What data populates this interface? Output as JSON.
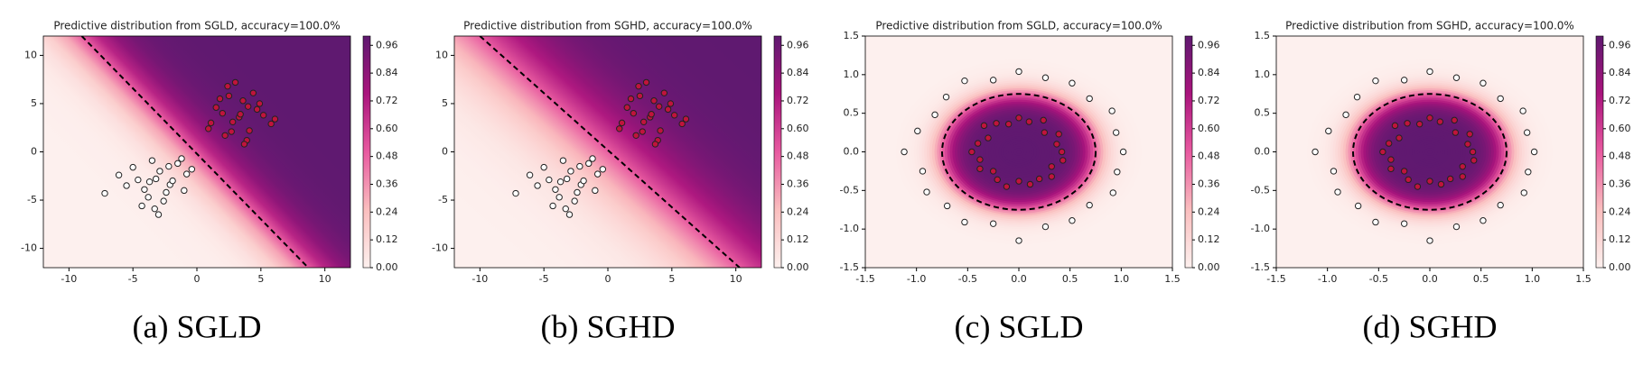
{
  "chart_data": [
    {
      "type": "scatter",
      "title": "Predictive distribution from SGLD, accuracy=100.0%",
      "caption": "(a) SGLD",
      "xlim": [
        -12,
        12
      ],
      "ylim": [
        -12,
        12
      ],
      "xticks": [
        -10,
        -5,
        0,
        5,
        10
      ],
      "yticks": [
        -10,
        -5,
        0,
        5,
        10
      ],
      "boundary": {
        "x": [
          -9,
          8.7
        ],
        "y": [
          12,
          -12
        ]
      },
      "colorbar": {
        "lim": [
          0,
          1
        ],
        "ticks": [
          {
            "value": 0,
            "label": "0.00"
          },
          {
            "value": 0.12,
            "label": "0.12"
          },
          {
            "value": 0.24,
            "label": "0.24"
          },
          {
            "value": 0.36,
            "label": "0.36"
          },
          {
            "value": 0.48,
            "label": "0.48"
          },
          {
            "value": 0.6,
            "label": "0.60"
          },
          {
            "value": 0.72,
            "label": "0.72"
          },
          {
            "value": 0.84,
            "label": "0.84"
          },
          {
            "value": 0.96,
            "label": "0.96"
          }
        ]
      },
      "series": [
        {
          "color": "#ffffff",
          "x": [
            -3.2,
            -1.5,
            -4.1,
            -2.6,
            -0.8,
            -5.0,
            -3.8,
            -2.1,
            -1.2,
            -4.6,
            -3.0,
            -2.4,
            -6.1,
            -1.9,
            -3.5,
            -0.4,
            -4.3,
            -2.9,
            -5.5,
            -1.0,
            -3.7,
            -2.2,
            -7.2,
            -3.3
          ],
          "y": [
            -2.8,
            -1.2,
            -3.9,
            -5.1,
            -2.3,
            -1.6,
            -4.7,
            -3.4,
            -0.7,
            -2.9,
            -6.5,
            -4.2,
            -2.4,
            -3.0,
            -0.9,
            -1.8,
            -5.6,
            -2.0,
            -3.5,
            -4.0,
            -3.1,
            -1.5,
            -4.3,
            -5.9
          ]
        },
        {
          "color": "#c0143c",
          "x": [
            2.8,
            4.1,
            1.5,
            3.6,
            5.2,
            2.2,
            3.0,
            4.7,
            1.1,
            3.9,
            2.5,
            5.8,
            3.3,
            0.9,
            4.4,
            2.0,
            3.7,
            6.1,
            2.7,
            4.9,
            1.8,
            3.4,
            2.4,
            4.0
          ],
          "y": [
            3.1,
            2.2,
            4.6,
            5.3,
            3.8,
            1.7,
            7.2,
            4.4,
            3.0,
            1.2,
            5.8,
            2.9,
            3.6,
            2.4,
            6.1,
            4.0,
            0.8,
            3.4,
            2.1,
            5.0,
            5.5,
            3.9,
            6.8,
            4.7
          ]
        }
      ]
    },
    {
      "type": "scatter",
      "title": "Predictive distribution from SGHD, accuracy=100.0%",
      "caption": "(b) SGHD",
      "xlim": [
        -12,
        12
      ],
      "ylim": [
        -12,
        12
      ],
      "xticks": [
        -10,
        -5,
        0,
        5,
        10
      ],
      "yticks": [
        -10,
        -5,
        0,
        5,
        10
      ],
      "boundary": {
        "x": [
          -10,
          10.3
        ],
        "y": [
          12,
          -12
        ]
      },
      "colorbar": {
        "lim": [
          0,
          1
        ],
        "ticks": [
          {
            "value": 0,
            "label": "0.00"
          },
          {
            "value": 0.12,
            "label": "0.12"
          },
          {
            "value": 0.24,
            "label": "0.24"
          },
          {
            "value": 0.36,
            "label": "0.36"
          },
          {
            "value": 0.48,
            "label": "0.48"
          },
          {
            "value": 0.6,
            "label": "0.60"
          },
          {
            "value": 0.72,
            "label": "0.72"
          },
          {
            "value": 0.84,
            "label": "0.84"
          },
          {
            "value": 0.96,
            "label": "0.96"
          }
        ]
      },
      "series": [
        {
          "color": "#ffffff",
          "x": [
            -3.2,
            -1.5,
            -4.1,
            -2.6,
            -0.8,
            -5.0,
            -3.8,
            -2.1,
            -1.2,
            -4.6,
            -3.0,
            -2.4,
            -6.1,
            -1.9,
            -3.5,
            -0.4,
            -4.3,
            -2.9,
            -5.5,
            -1.0,
            -3.7,
            -2.2,
            -7.2,
            -3.3
          ],
          "y": [
            -2.8,
            -1.2,
            -3.9,
            -5.1,
            -2.3,
            -1.6,
            -4.7,
            -3.4,
            -0.7,
            -2.9,
            -6.5,
            -4.2,
            -2.4,
            -3.0,
            -0.9,
            -1.8,
            -5.6,
            -2.0,
            -3.5,
            -4.0,
            -3.1,
            -1.5,
            -4.3,
            -5.9
          ]
        },
        {
          "color": "#c0143c",
          "x": [
            2.8,
            4.1,
            1.5,
            3.6,
            5.2,
            2.2,
            3.0,
            4.7,
            1.1,
            3.9,
            2.5,
            5.8,
            3.3,
            0.9,
            4.4,
            2.0,
            3.7,
            6.1,
            2.7,
            4.9,
            1.8,
            3.4,
            2.4,
            4.0
          ],
          "y": [
            3.1,
            2.2,
            4.6,
            5.3,
            3.8,
            1.7,
            7.2,
            4.4,
            3.0,
            1.2,
            5.8,
            2.9,
            3.6,
            2.4,
            6.1,
            4.0,
            0.8,
            3.4,
            2.1,
            5.0,
            5.5,
            3.9,
            6.8,
            4.7
          ]
        }
      ]
    },
    {
      "type": "scatter",
      "title": "Predictive distribution from SGLD, accuracy=100.0%",
      "caption": "(c) SGLD",
      "xlim": [
        -1.5,
        1.5
      ],
      "ylim": [
        -1.5,
        1.5
      ],
      "xticks": [
        -1.5,
        {
          "value": -1,
          "label": "-1.0"
        },
        -0.5,
        {
          "value": 0,
          "label": "0.0"
        },
        0.5,
        {
          "value": 1,
          "label": "1.0"
        },
        1.5
      ],
      "yticks": [
        -1.5,
        {
          "value": -1,
          "label": "-1.0"
        },
        -0.5,
        {
          "value": 0,
          "label": "0.0"
        },
        0.5,
        {
          "value": 1,
          "label": "1.0"
        },
        1.5
      ],
      "boundary_radius": 0.75,
      "colorbar": {
        "lim": [
          0,
          1
        ],
        "ticks": [
          {
            "value": 0,
            "label": "0.00"
          },
          {
            "value": 0.12,
            "label": "0.12"
          },
          {
            "value": 0.24,
            "label": "0.24"
          },
          {
            "value": 0.36,
            "label": "0.36"
          },
          {
            "value": 0.48,
            "label": "0.48"
          },
          {
            "value": 0.6,
            "label": "0.60"
          },
          {
            "value": 0.72,
            "label": "0.72"
          },
          {
            "value": 0.84,
            "label": "0.84"
          },
          {
            "value": 0.96,
            "label": "0.96"
          }
        ]
      },
      "series": [
        {
          "color": "#ffffff",
          "x": [
            1.02,
            0.95,
            0.91,
            0.69,
            0.52,
            0.26,
            0.0,
            -0.25,
            -0.53,
            -0.71,
            -0.82,
            -0.99,
            -1.12,
            -0.94,
            -0.9,
            -0.7,
            -0.53,
            -0.25,
            0.0,
            0.26,
            0.52,
            0.69,
            0.92,
            0.96
          ],
          "y": [
            0.0,
            0.25,
            0.53,
            0.69,
            0.89,
            0.96,
            1.04,
            0.93,
            0.92,
            0.71,
            0.48,
            0.27,
            0.0,
            -0.25,
            -0.52,
            -0.7,
            -0.91,
            -0.93,
            -1.15,
            -0.97,
            -0.89,
            -0.69,
            -0.53,
            -0.26
          ]
        },
        {
          "color": "#c0143c",
          "x": [
            0.42,
            0.37,
            0.39,
            0.25,
            0.24,
            0.1,
            0.0,
            -0.1,
            -0.22,
            -0.34,
            -0.3,
            -0.4,
            -0.46,
            -0.38,
            -0.38,
            -0.25,
            -0.21,
            -0.12,
            0.0,
            0.11,
            0.2,
            0.32,
            0.32,
            0.43
          ],
          "y": [
            0.0,
            0.1,
            0.23,
            0.25,
            0.41,
            0.39,
            0.44,
            0.36,
            0.37,
            0.34,
            0.18,
            0.11,
            0.0,
            -0.1,
            -0.22,
            -0.25,
            -0.36,
            -0.45,
            -0.38,
            -0.42,
            -0.35,
            -0.32,
            -0.19,
            -0.11
          ]
        }
      ]
    },
    {
      "type": "scatter",
      "title": "Predictive distribution from SGHD, accuracy=100.0%",
      "caption": "(d) SGHD",
      "xlim": [
        -1.5,
        1.5
      ],
      "ylim": [
        -1.5,
        1.5
      ],
      "xticks": [
        -1.5,
        {
          "value": -1,
          "label": "-1.0"
        },
        -0.5,
        {
          "value": 0,
          "label": "0.0"
        },
        0.5,
        {
          "value": 1,
          "label": "1.0"
        },
        1.5
      ],
      "yticks": [
        -1.5,
        {
          "value": -1,
          "label": "-1.0"
        },
        -0.5,
        {
          "value": 0,
          "label": "0.0"
        },
        0.5,
        {
          "value": 1,
          "label": "1.0"
        },
        1.5
      ],
      "boundary_radius": 0.75,
      "colorbar": {
        "lim": [
          0,
          1
        ],
        "ticks": [
          {
            "value": 0,
            "label": "0.00"
          },
          {
            "value": 0.12,
            "label": "0.12"
          },
          {
            "value": 0.24,
            "label": "0.24"
          },
          {
            "value": 0.36,
            "label": "0.36"
          },
          {
            "value": 0.48,
            "label": "0.48"
          },
          {
            "value": 0.6,
            "label": "0.60"
          },
          {
            "value": 0.72,
            "label": "0.72"
          },
          {
            "value": 0.84,
            "label": "0.84"
          },
          {
            "value": 0.96,
            "label": "0.96"
          }
        ]
      },
      "series": [
        {
          "color": "#ffffff",
          "x": [
            1.02,
            0.95,
            0.91,
            0.69,
            0.52,
            0.26,
            0.0,
            -0.25,
            -0.53,
            -0.71,
            -0.82,
            -0.99,
            -1.12,
            -0.94,
            -0.9,
            -0.7,
            -0.53,
            -0.25,
            0.0,
            0.26,
            0.52,
            0.69,
            0.92,
            0.96
          ],
          "y": [
            0.0,
            0.25,
            0.53,
            0.69,
            0.89,
            0.96,
            1.04,
            0.93,
            0.92,
            0.71,
            0.48,
            0.27,
            0.0,
            -0.25,
            -0.52,
            -0.7,
            -0.91,
            -0.93,
            -1.15,
            -0.97,
            -0.89,
            -0.69,
            -0.53,
            -0.26
          ]
        },
        {
          "color": "#c0143c",
          "x": [
            0.42,
            0.37,
            0.39,
            0.25,
            0.24,
            0.1,
            0.0,
            -0.1,
            -0.22,
            -0.34,
            -0.3,
            -0.4,
            -0.46,
            -0.38,
            -0.38,
            -0.25,
            -0.21,
            -0.12,
            0.0,
            0.11,
            0.2,
            0.32,
            0.32,
            0.43
          ],
          "y": [
            0.0,
            0.1,
            0.23,
            0.25,
            0.41,
            0.39,
            0.44,
            0.36,
            0.37,
            0.34,
            0.18,
            0.11,
            0.0,
            -0.1,
            -0.22,
            -0.25,
            -0.36,
            -0.45,
            -0.38,
            -0.42,
            -0.35,
            -0.32,
            -0.19,
            -0.11
          ]
        }
      ]
    }
  ]
}
